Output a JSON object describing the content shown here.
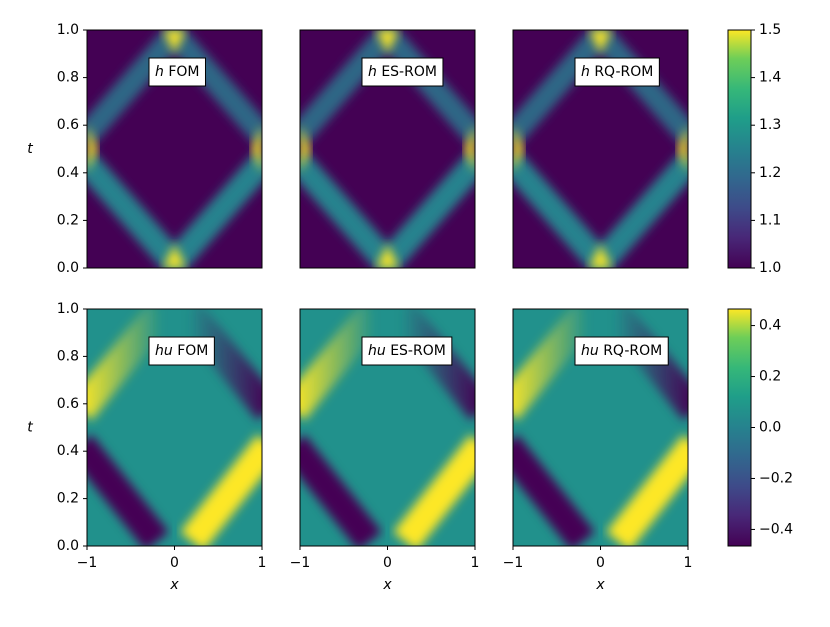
{
  "chart_data": [
    {
      "type": "heatmap",
      "field": "h",
      "label": "FOM",
      "xlim": [
        -1,
        1
      ],
      "ylim": [
        0,
        1
      ],
      "ylabel": "t",
      "yticks": [
        {
          "value": 0,
          "label": "0.0"
        },
        0.2,
        0.4,
        0.6,
        0.8,
        {
          "value": 1,
          "label": "1.0"
        }
      ]
    },
    {
      "type": "heatmap",
      "field": "h",
      "label": "ES-ROM",
      "xlim": [
        -1,
        1
      ],
      "ylim": [
        0,
        1
      ]
    },
    {
      "type": "heatmap",
      "field": "h",
      "label": "RQ-ROM",
      "xlim": [
        -1,
        1
      ],
      "ylim": [
        0,
        1
      ]
    },
    {
      "type": "heatmap",
      "field": "hu",
      "label": "FOM",
      "xlim": [
        -1,
        1
      ],
      "ylim": [
        0,
        1
      ],
      "ylabel": "t",
      "xlabel": "x",
      "yticks": [
        {
          "value": 0,
          "label": "0.0"
        },
        0.2,
        0.4,
        0.6,
        0.8,
        {
          "value": 1,
          "label": "1.0"
        }
      ],
      "xticks": [
        {
          "value": -1,
          "label": "−1"
        },
        0,
        1
      ]
    },
    {
      "type": "heatmap",
      "field": "hu",
      "label": "ES-ROM",
      "xlim": [
        -1,
        1
      ],
      "ylim": [
        0,
        1
      ],
      "xlabel": "x",
      "xticks": [
        {
          "value": -1,
          "label": "−1"
        },
        0,
        1
      ]
    },
    {
      "type": "heatmap",
      "field": "hu",
      "label": "RQ-ROM",
      "xlim": [
        -1,
        1
      ],
      "ylim": [
        0,
        1
      ],
      "xlabel": "x",
      "xticks": [
        {
          "value": -1,
          "label": "−1"
        },
        0,
        1
      ]
    },
    {
      "type": "colorbar",
      "colormap": "viridis",
      "clim": [
        1,
        1.5
      ],
      "ticks": [
        {
          "value": 1,
          "label": "1.0"
        },
        1.1,
        1.2,
        1.3,
        1.4,
        1.5
      ]
    },
    {
      "type": "colorbar",
      "colormap": "viridis",
      "clim": [
        -0.465,
        0.465
      ],
      "ticks": [
        {
          "value": -0.4,
          "label": "−0.4"
        },
        {
          "value": -0.2,
          "label": "−0.2"
        },
        {
          "value": 0,
          "label": "0.0"
        },
        0.2,
        0.4
      ]
    }
  ]
}
